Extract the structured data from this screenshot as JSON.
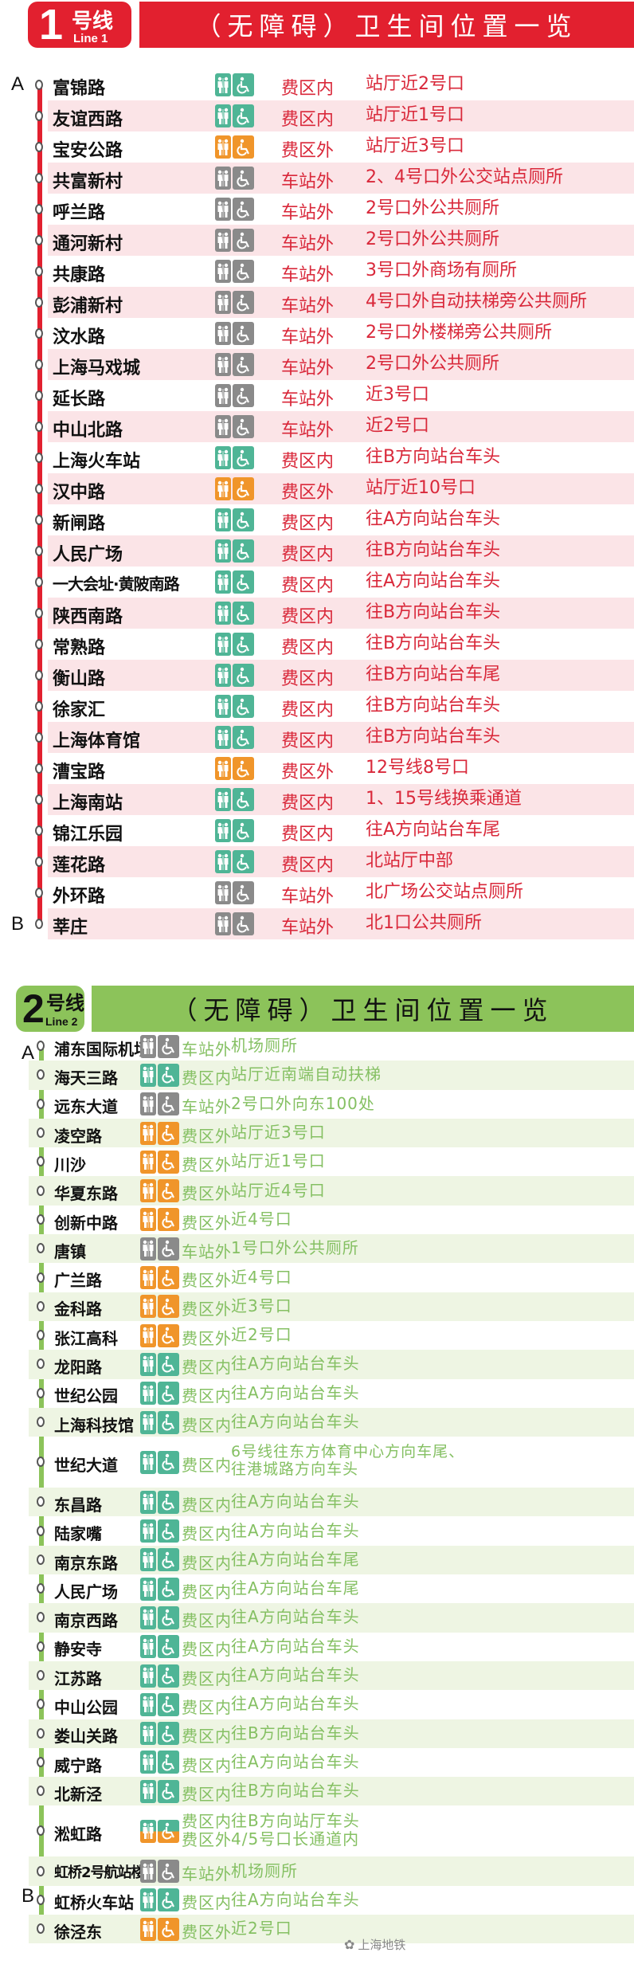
{
  "colors": {
    "line1": "#e2202f",
    "line2": "#8cc35a",
    "inside": "#4fb596",
    "outside": "#f0952a",
    "station_out": "#8a8a8a"
  },
  "icons": {
    "toilet": "toilet-icon",
    "accessible": "wheelchair-icon"
  },
  "line1": {
    "number": "1",
    "hao": "号线",
    "en": "Line 1",
    "title": "（无障碍）卫生间位置一览",
    "end_a": "A",
    "end_b": "B",
    "stations": [
      {
        "name": "富锦路",
        "type": "inside",
        "zone": "费区内",
        "loc": [
          "站厅近2号口"
        ]
      },
      {
        "name": "友谊西路",
        "type": "inside",
        "zone": "费区内",
        "loc": [
          "站厅近1号口"
        ]
      },
      {
        "name": "宝安公路",
        "type": "outside",
        "zone": "费区外",
        "loc": [
          "站厅近3号口"
        ]
      },
      {
        "name": "共富新村",
        "type": "station_out",
        "zone": "车站外",
        "loc": [
          "2、4号口外公交站点厕所"
        ]
      },
      {
        "name": "呼兰路",
        "type": "station_out",
        "zone": "车站外",
        "loc": [
          "2号口外公共厕所"
        ]
      },
      {
        "name": "通河新村",
        "type": "station_out",
        "zone": "车站外",
        "loc": [
          "2号口外公共厕所"
        ]
      },
      {
        "name": "共康路",
        "type": "station_out",
        "zone": "车站外",
        "loc": [
          "3号口外商场有厕所"
        ]
      },
      {
        "name": "彭浦新村",
        "type": "station_out",
        "zone": "车站外",
        "loc": [
          "4号口外自动扶梯旁公共厕所"
        ]
      },
      {
        "name": "汶水路",
        "type": "station_out",
        "zone": "车站外",
        "loc": [
          "2号口外楼梯旁公共厕所"
        ]
      },
      {
        "name": "上海马戏城",
        "type": "station_out",
        "zone": "车站外",
        "loc": [
          "2号口外公共厕所"
        ]
      },
      {
        "name": "延长路",
        "type": "station_out",
        "zone": "车站外",
        "loc": [
          "近3号口"
        ]
      },
      {
        "name": "中山北路",
        "type": "station_out",
        "zone": "车站外",
        "loc": [
          "近2号口"
        ]
      },
      {
        "name": "上海火车站",
        "type": "inside",
        "zone": "费区内",
        "loc": [
          "往B方向站台车头"
        ]
      },
      {
        "name": "汉中路",
        "type": "outside",
        "zone": "费区外",
        "loc": [
          "站厅近10号口"
        ]
      },
      {
        "name": "新闸路",
        "type": "inside",
        "zone": "费区内",
        "loc": [
          "往A方向站台车头"
        ]
      },
      {
        "name": "人民广场",
        "type": "inside",
        "zone": "费区内",
        "loc": [
          "往B方向站台车头"
        ]
      },
      {
        "name": "一大会址·黄陂南路",
        "type": "inside",
        "zone": "费区内",
        "loc": [
          "往A方向站台车头"
        ]
      },
      {
        "name": "陕西南路",
        "type": "inside",
        "zone": "费区内",
        "loc": [
          "往B方向站台车头"
        ]
      },
      {
        "name": "常熟路",
        "type": "inside",
        "zone": "费区内",
        "loc": [
          "往B方向站台车头"
        ]
      },
      {
        "name": "衡山路",
        "type": "inside",
        "zone": "费区内",
        "loc": [
          "往B方向站台车尾"
        ]
      },
      {
        "name": "徐家汇",
        "type": "inside",
        "zone": "费区内",
        "loc": [
          "往B方向站台车头"
        ]
      },
      {
        "name": "上海体育馆",
        "type": "inside",
        "zone": "费区内",
        "loc": [
          "往B方向站台车头"
        ]
      },
      {
        "name": "漕宝路",
        "type": "outside",
        "zone": "费区外",
        "loc": [
          "12号线8号口"
        ]
      },
      {
        "name": "上海南站",
        "type": "inside",
        "zone": "费区内",
        "loc": [
          "1、15号线换乘通道"
        ]
      },
      {
        "name": "锦江乐园",
        "type": "inside",
        "zone": "费区内",
        "loc": [
          "往A方向站台车尾"
        ]
      },
      {
        "name": "莲花路",
        "type": "inside",
        "zone": "费区内",
        "loc": [
          "北站厅中部"
        ]
      },
      {
        "name": "外环路",
        "type": "station_out",
        "zone": "车站外",
        "loc": [
          "北广场公交站点厕所"
        ]
      },
      {
        "name": "莘庄",
        "type": "station_out",
        "zone": "车站外",
        "loc": [
          "北1口公共厕所"
        ]
      }
    ]
  },
  "line2": {
    "number": "2",
    "hao": "号线",
    "en": "Line 2",
    "title": "（无障碍）卫生间位置一览",
    "end_a": "A",
    "end_b": "B",
    "stations": [
      {
        "name": "浦东国际机场",
        "type": "station_out",
        "zone": "车站外",
        "loc": [
          "机场厕所"
        ]
      },
      {
        "name": "海天三路",
        "type": "inside",
        "zone": "费区内",
        "loc": [
          "站厅近南端自动扶梯"
        ]
      },
      {
        "name": "远东大道",
        "type": "station_out",
        "zone": "车站外",
        "loc": [
          "2号口外向东100处"
        ]
      },
      {
        "name": "凌空路",
        "type": "outside",
        "zone": "费区外",
        "loc": [
          "站厅近3号口"
        ]
      },
      {
        "name": "川沙",
        "type": "outside",
        "zone": "费区外",
        "loc": [
          "站厅近1号口"
        ]
      },
      {
        "name": "华夏东路",
        "type": "outside",
        "zone": "费区外",
        "loc": [
          "站厅近4号口"
        ]
      },
      {
        "name": "创新中路",
        "type": "outside",
        "zone": "费区外",
        "loc": [
          "近4号口"
        ]
      },
      {
        "name": "唐镇",
        "type": "station_out",
        "zone": "车站外",
        "loc": [
          "1号口外公共厕所"
        ]
      },
      {
        "name": "广兰路",
        "type": "outside",
        "zone": "费区外",
        "loc": [
          "近4号口"
        ]
      },
      {
        "name": "金科路",
        "type": "outside",
        "zone": "费区外",
        "loc": [
          "近3号口"
        ]
      },
      {
        "name": "张江高科",
        "type": "outside",
        "zone": "费区外",
        "loc": [
          "近2号口"
        ]
      },
      {
        "name": "龙阳路",
        "type": "inside",
        "zone": "费区内",
        "loc": [
          "往A方向站台车头"
        ]
      },
      {
        "name": "世纪公园",
        "type": "inside",
        "zone": "费区内",
        "loc": [
          "往A方向站台车头"
        ]
      },
      {
        "name": "上海科技馆",
        "type": "inside",
        "zone": "费区内",
        "loc": [
          "往A方向站台车头"
        ]
      },
      {
        "name": "世纪大道",
        "type": "inside",
        "zone": "费区内",
        "loc": [
          "6号线往东方体育中心方向车尾、",
          "往港城路方向车头"
        ]
      },
      {
        "name": "东昌路",
        "type": "inside",
        "zone": "费区内",
        "loc": [
          "往A方向站台车头"
        ]
      },
      {
        "name": "陆家嘴",
        "type": "inside",
        "zone": "费区内",
        "loc": [
          "往A方向站台车头"
        ]
      },
      {
        "name": "南京东路",
        "type": "inside",
        "zone": "费区内",
        "loc": [
          "往A方向站台车尾"
        ]
      },
      {
        "name": "人民广场",
        "type": "inside",
        "zone": "费区内",
        "loc": [
          "往A方向站台车尾"
        ]
      },
      {
        "name": "南京西路",
        "type": "inside",
        "zone": "费区内",
        "loc": [
          "往A方向站台车头"
        ]
      },
      {
        "name": "静安寺",
        "type": "inside",
        "zone": "费区内",
        "loc": [
          "往A方向站台车头"
        ]
      },
      {
        "name": "江苏路",
        "type": "inside",
        "zone": "费区内",
        "loc": [
          "往A方向站台车头"
        ]
      },
      {
        "name": "中山公园",
        "type": "inside",
        "zone": "费区内",
        "loc": [
          "往A方向站台车头"
        ]
      },
      {
        "name": "娄山关路",
        "type": "inside",
        "zone": "费区内",
        "loc": [
          "往B方向站台车头"
        ]
      },
      {
        "name": "威宁路",
        "type": "inside",
        "zone": "费区内",
        "loc": [
          "往A方向站台车头"
        ]
      },
      {
        "name": "北新泾",
        "type": "inside",
        "zone": "费区内",
        "loc": [
          "往B方向站台车头"
        ]
      },
      {
        "name": "淞虹路",
        "type": "split",
        "zone": [
          "费区内",
          "费区外"
        ],
        "loc": [
          "往B方向站厅车头",
          "4/5号口长通道内"
        ]
      },
      {
        "name": "虹桥2号航站楼",
        "type": "station_out",
        "zone": "车站外",
        "loc": [
          "机场厕所"
        ]
      },
      {
        "name": "虹桥火车站",
        "type": "inside",
        "zone": "费区内",
        "loc": [
          "往A方向站台车头"
        ]
      },
      {
        "name": "徐泾东",
        "type": "outside",
        "zone": "费区外",
        "loc": [
          "近2号口"
        ]
      }
    ]
  },
  "watermark": "上海地铁"
}
